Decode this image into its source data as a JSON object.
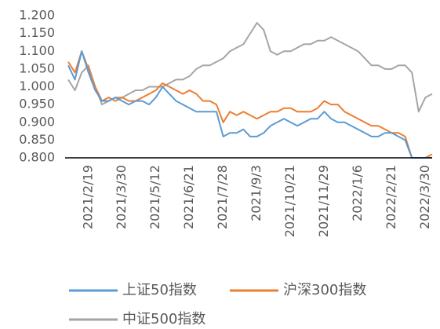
{
  "chart_data": {
    "type": "line",
    "categories": [
      null,
      null,
      null,
      "2021/2/19",
      null,
      null,
      null,
      null,
      "2021/3/30",
      null,
      null,
      null,
      null,
      "2021/5/12",
      null,
      null,
      null,
      null,
      "2021/6/21",
      null,
      null,
      null,
      null,
      "2021/7/28",
      null,
      null,
      null,
      null,
      "2021/9/3",
      null,
      null,
      null,
      null,
      "2021/10/21",
      null,
      null,
      null,
      null,
      "2021/11/29",
      null,
      null,
      null,
      null,
      "2022/1/6",
      null,
      null,
      null,
      null,
      "2022/2/21",
      null,
      null,
      null,
      null,
      "2022/3/30",
      null
    ],
    "series": [
      {
        "name": "上证50指数",
        "color": "#5b9bd5",
        "values": [
          1.06,
          1.02,
          1.1,
          1.04,
          0.99,
          0.96,
          0.96,
          0.97,
          0.96,
          0.95,
          0.96,
          0.96,
          0.95,
          0.97,
          1.0,
          0.98,
          0.96,
          0.95,
          0.94,
          0.93,
          0.93,
          0.93,
          0.93,
          0.86,
          0.87,
          0.87,
          0.88,
          0.86,
          0.86,
          0.87,
          0.89,
          0.9,
          0.91,
          0.9,
          0.89,
          0.9,
          0.91,
          0.91,
          0.93,
          0.91,
          0.9,
          0.9,
          0.89,
          0.88,
          0.87,
          0.86,
          0.86,
          0.87,
          0.87,
          0.86,
          0.85,
          0.8,
          0.8,
          0.8,
          0.8
        ]
      },
      {
        "name": "沪深300指数",
        "color": "#ed7d31",
        "values": [
          1.07,
          1.04,
          1.1,
          1.05,
          1.0,
          0.96,
          0.97,
          0.96,
          0.97,
          0.96,
          0.96,
          0.97,
          0.98,
          0.99,
          1.01,
          1.0,
          0.99,
          0.98,
          0.99,
          0.98,
          0.96,
          0.96,
          0.95,
          0.9,
          0.93,
          0.92,
          0.93,
          0.92,
          0.91,
          0.92,
          0.93,
          0.93,
          0.94,
          0.94,
          0.93,
          0.93,
          0.93,
          0.94,
          0.96,
          0.95,
          0.95,
          0.93,
          0.92,
          0.91,
          0.9,
          0.89,
          0.89,
          0.88,
          0.87,
          0.87,
          0.86,
          0.8,
          0.8,
          0.8,
          0.81
        ]
      },
      {
        "name": "中证500指数",
        "color": "#a5a5a5",
        "values": [
          1.02,
          0.99,
          1.04,
          1.06,
          1.0,
          0.95,
          0.96,
          0.97,
          0.97,
          0.98,
          0.99,
          0.99,
          1.0,
          1.0,
          1.0,
          1.01,
          1.02,
          1.02,
          1.03,
          1.05,
          1.06,
          1.06,
          1.07,
          1.08,
          1.1,
          1.11,
          1.12,
          1.15,
          1.18,
          1.16,
          1.1,
          1.09,
          1.1,
          1.1,
          1.11,
          1.12,
          1.12,
          1.13,
          1.13,
          1.14,
          1.13,
          1.12,
          1.11,
          1.1,
          1.08,
          1.06,
          1.06,
          1.05,
          1.05,
          1.06,
          1.06,
          1.04,
          0.93,
          0.97,
          0.98
        ]
      }
    ],
    "ylim": [
      0.8,
      1.2
    ],
    "yticks": [
      {
        "value": 0.8,
        "label": "0.800"
      },
      {
        "value": 0.85,
        "label": "0.850"
      },
      {
        "value": 0.9,
        "label": "0.900"
      },
      {
        "value": 0.95,
        "label": "0.950"
      },
      {
        "value": 1.0,
        "label": "1.000"
      },
      {
        "value": 1.05,
        "label": "1.050"
      },
      {
        "value": 1.1,
        "label": "1.100"
      },
      {
        "value": 1.15,
        "label": "1.150"
      },
      {
        "value": 1.2,
        "label": "1.200"
      }
    ]
  }
}
